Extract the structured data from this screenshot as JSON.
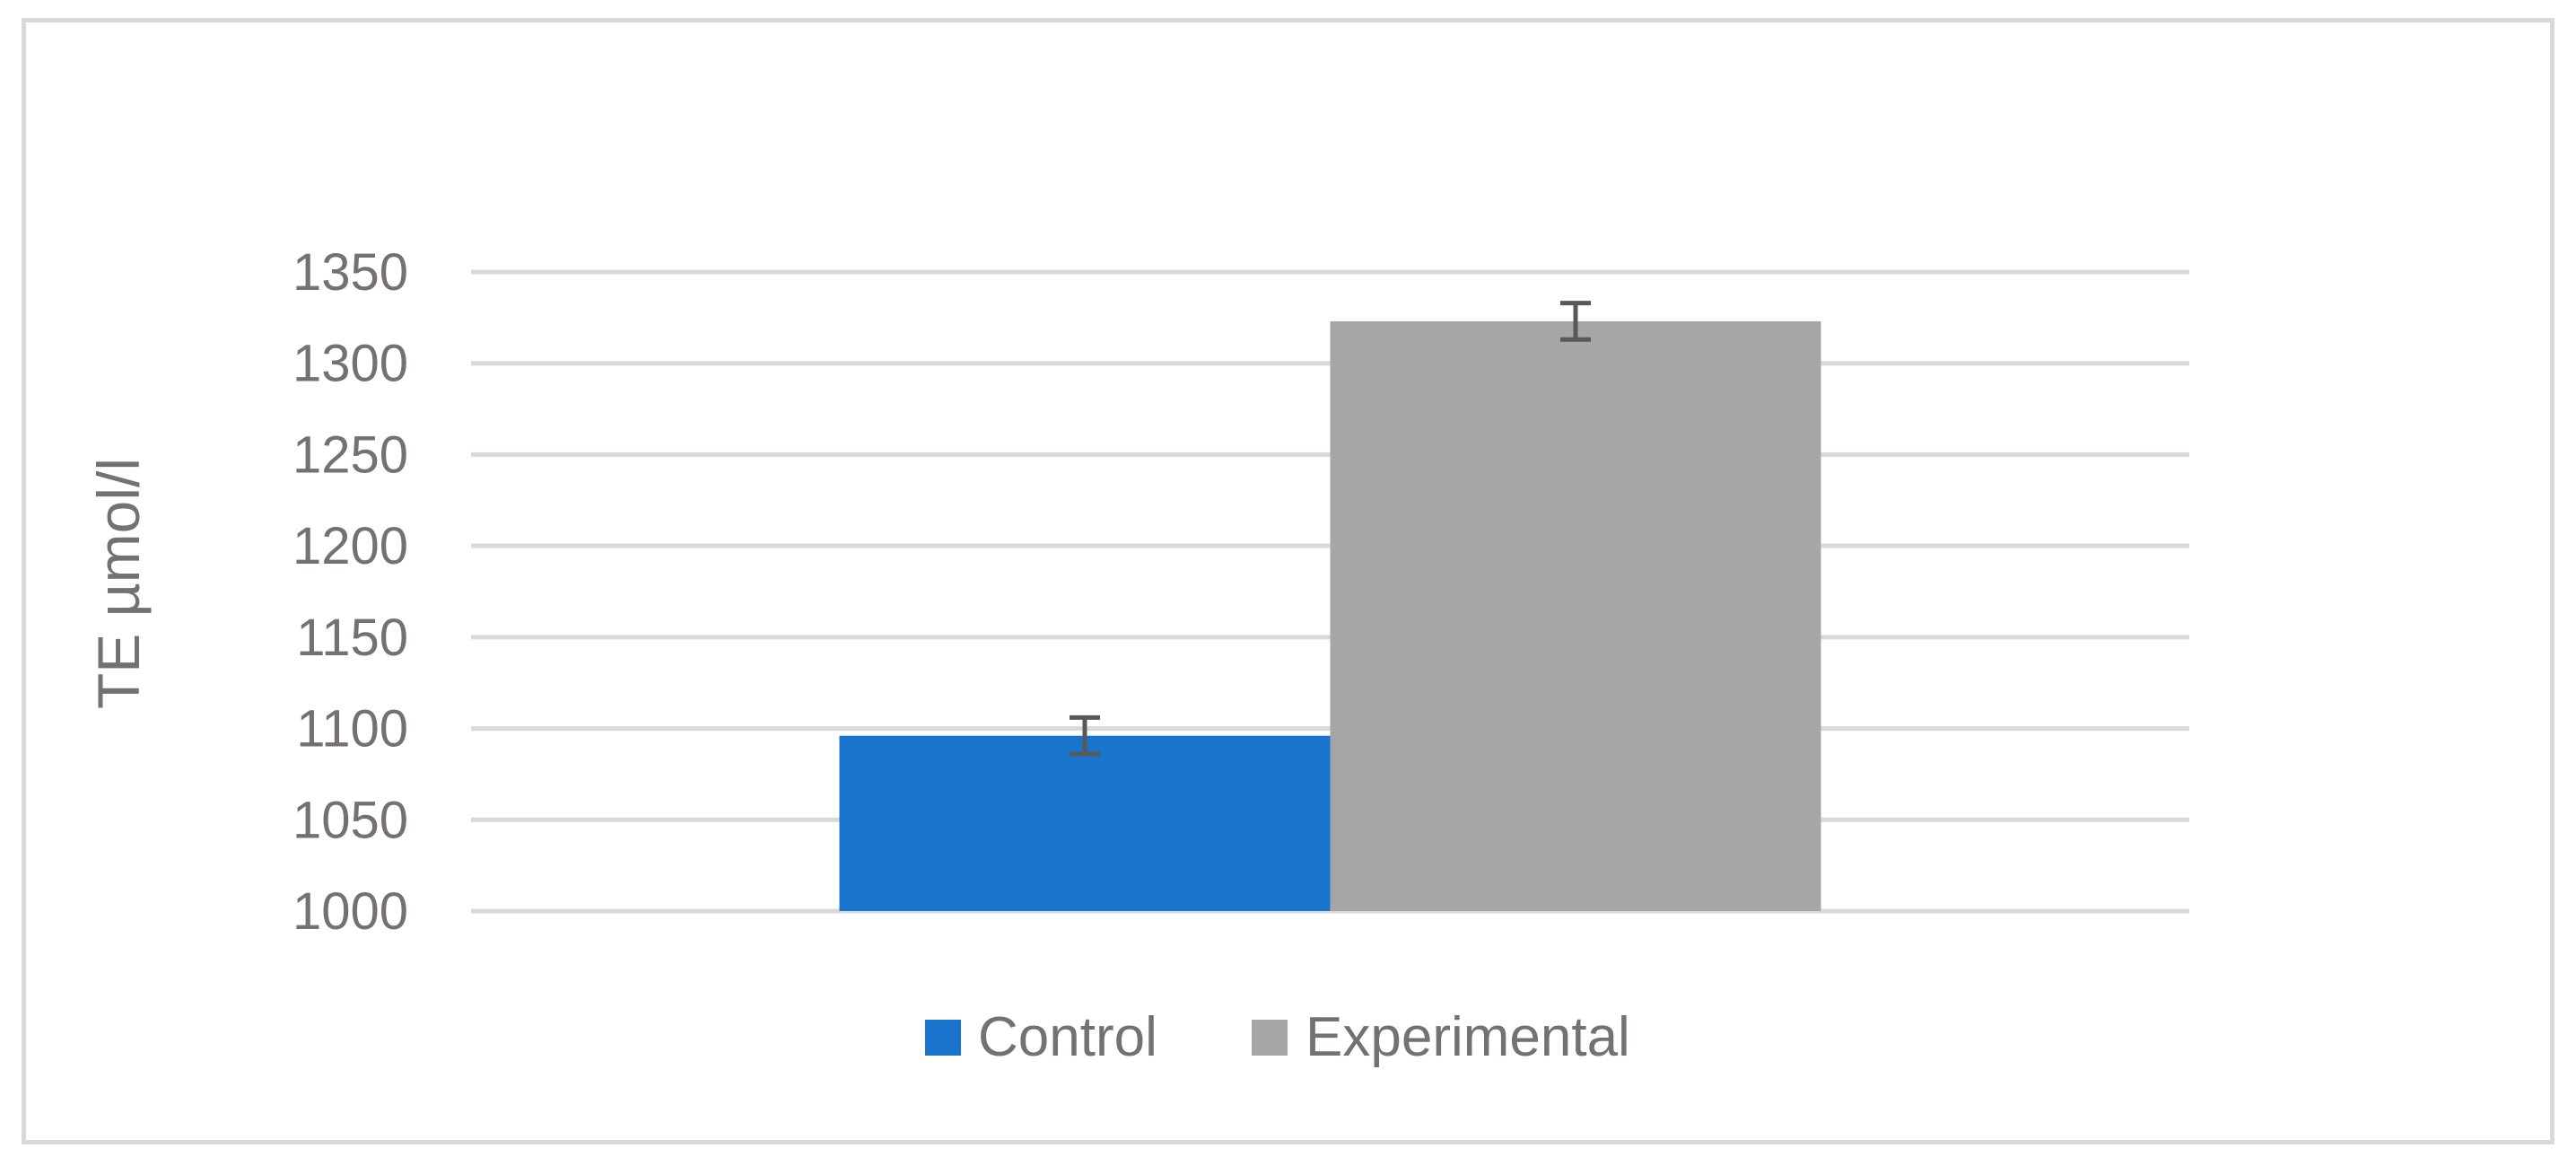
{
  "chart_data": {
    "type": "bar",
    "title": "",
    "xlabel": "",
    "ylabel": "TE µmol/l",
    "ylim": [
      1000,
      1350
    ],
    "yticks": [
      1000,
      1050,
      1100,
      1150,
      1200,
      1250,
      1300,
      1350
    ],
    "grid": true,
    "legend_position": "bottom",
    "categories": [
      ""
    ],
    "series": [
      {
        "name": "Control",
        "values": [
          1096
        ],
        "error": [
          10
        ],
        "color": "#1874cd"
      },
      {
        "name": "Experimental",
        "values": [
          1323
        ],
        "error": [
          10
        ],
        "color": "#a6a6a6"
      }
    ]
  }
}
